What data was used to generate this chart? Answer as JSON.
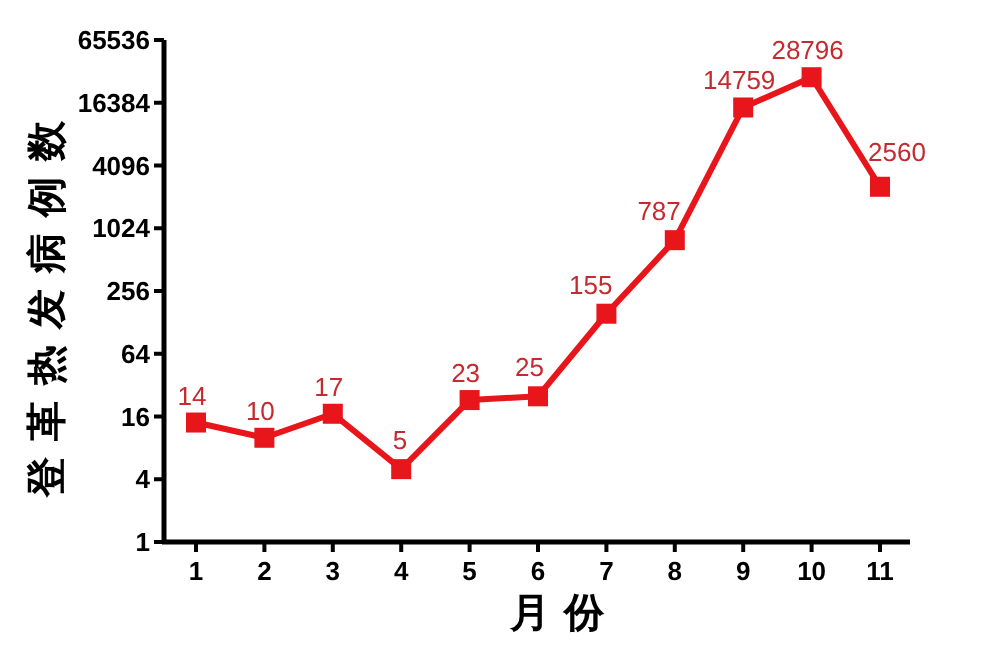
{
  "chart_data": {
    "type": "line",
    "xlabel": "月 份",
    "ylabel": "登革热发病例数",
    "categories": [
      "1",
      "2",
      "3",
      "4",
      "5",
      "6",
      "7",
      "8",
      "9",
      "10",
      "11"
    ],
    "series": [
      {
        "color": "#e8151b",
        "values": [
          14,
          10,
          17,
          5,
          23,
          25,
          155,
          787,
          14759,
          28796,
          2560
        ]
      }
    ],
    "log": "y",
    "ylim": [
      1,
      65536
    ],
    "yticks": [
      1,
      4,
      16,
      64,
      256,
      1024,
      4096,
      16384,
      65536
    ],
    "marker": "square",
    "line_style": "solid",
    "data_labels": true,
    "grid": false,
    "legend": false
  }
}
